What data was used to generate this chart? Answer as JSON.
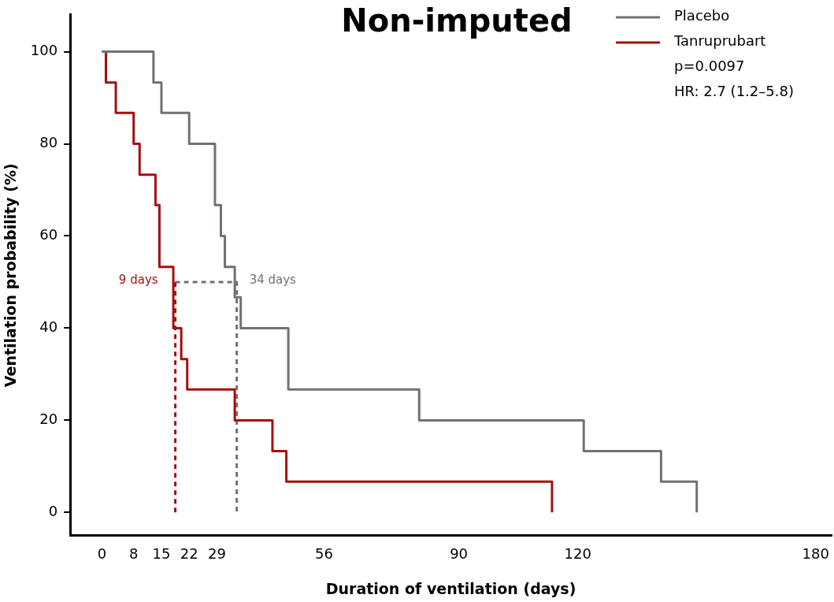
{
  "chart_data": {
    "type": "step",
    "title": "Non-imputed",
    "xlabel": "Duration of ventilation (days)",
    "ylabel": "Ventilation probability (%)",
    "series": [
      {
        "name": "Placebo",
        "color": "#6e7372",
        "x": [
          0,
          13,
          15,
          22,
          28.5,
          30,
          31,
          33.5,
          35,
          47,
          80,
          121.5,
          141,
          150
        ],
        "values": [
          100,
          93.3,
          86.7,
          80,
          66.7,
          60,
          53.3,
          46.7,
          40,
          26.7,
          20,
          13.3,
          6.7,
          0
        ]
      },
      {
        "name": "Tanruprubart",
        "color": "#a50f0f",
        "x": [
          0,
          1,
          3.5,
          8,
          9.5,
          13.5,
          14.5,
          18,
          20,
          21.5,
          33.5,
          43,
          46.5,
          113.5
        ],
        "values": [
          100,
          93.3,
          86.7,
          80,
          73.3,
          66.7,
          53.3,
          40,
          33.3,
          26.7,
          20,
          13.3,
          6.7,
          0
        ]
      },
      {
        "type": "line",
        "color": "#a50f0f",
        "line_style": "dashed",
        "x": [
          18.5,
          18.5
        ],
        "values": [
          0,
          50
        ]
      },
      {
        "type": "line",
        "color": "#6e7372",
        "line_style": "dashed",
        "x": [
          18.5,
          34,
          34
        ],
        "values": [
          50,
          50,
          0
        ]
      }
    ],
    "annotations": [
      {
        "text": "9 days",
        "x": 18.5,
        "y": 50
      },
      {
        "text": "34 days",
        "x": 34,
        "y": 50
      },
      "p=0.0097",
      "HR: 2.7 (1.2–5.8)"
    ],
    "xlim": [
      -8,
      184
    ],
    "xticks": [
      0,
      8,
      15,
      22,
      29,
      56,
      90,
      120,
      180
    ],
    "ylim": [
      -5,
      108
    ],
    "yticks": [
      0,
      20,
      40,
      60,
      80,
      100
    ],
    "grid": false,
    "legend": "top right",
    "marker": "none",
    "line_style": "solid"
  }
}
